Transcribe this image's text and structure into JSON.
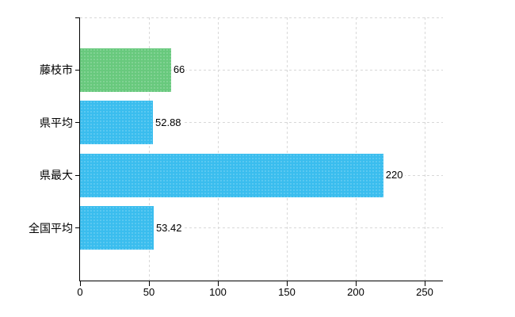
{
  "chart_data": {
    "type": "bar",
    "orientation": "horizontal",
    "title": "",
    "xlabel": "",
    "ylabel": "",
    "categories": [
      "藤枝市",
      "県平均",
      "県最大",
      "全国平均"
    ],
    "values": [
      66,
      52.88,
      220,
      53.42
    ],
    "value_labels": [
      "66",
      "52.88",
      "220",
      "53.42"
    ],
    "bar_colors": [
      "#68c97d",
      "#3abdee",
      "#3abdee",
      "#3abdee"
    ],
    "xlim": [
      0,
      250
    ],
    "x_ticks": [
      0,
      50,
      100,
      150,
      200,
      250
    ],
    "x_tick_labels": [
      "0",
      "50",
      "100",
      "150",
      "200",
      "250"
    ],
    "grid": true,
    "grid_style": "dashed",
    "legend_position": "none"
  },
  "colors": {
    "highlight_green": "#68c97d",
    "bar_blue": "#3abdee",
    "gridline": "#d8d8d8",
    "axis": "#000000",
    "text": "#000000",
    "background": "#ffffff"
  }
}
